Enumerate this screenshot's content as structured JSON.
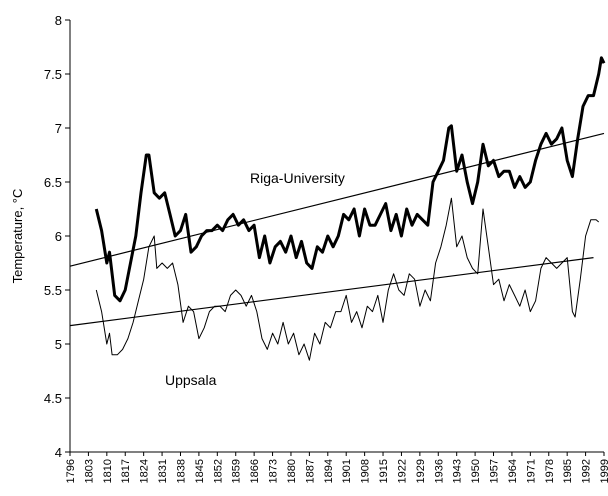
{
  "chart_data": {
    "type": "line",
    "y_label": "Temperature, °C",
    "xlim": [
      1796,
      1999
    ],
    "ylim": [
      4,
      8
    ],
    "xticks": [
      1796,
      1803,
      1810,
      1817,
      1824,
      1831,
      1838,
      1845,
      1852,
      1859,
      1866,
      1873,
      1880,
      1887,
      1894,
      1901,
      1908,
      1915,
      1922,
      1929,
      1936,
      1943,
      1950,
      1957,
      1964,
      1971,
      1978,
      1985,
      1992,
      1999
    ],
    "yticks": [
      4,
      4.5,
      5,
      5.5,
      6,
      6.5,
      7,
      7.5,
      8
    ],
    "series": [
      {
        "name": "Riga-University",
        "color": "#000000",
        "line_width": 3,
        "x": [
          1806,
          1808,
          1810,
          1811,
          1813,
          1815,
          1817,
          1819,
          1821,
          1823,
          1825,
          1826,
          1828,
          1830,
          1832,
          1834,
          1836,
          1838,
          1840,
          1842,
          1844,
          1846,
          1848,
          1850,
          1852,
          1854,
          1856,
          1858,
          1860,
          1862,
          1864,
          1866,
          1868,
          1870,
          1872,
          1874,
          1876,
          1878,
          1880,
          1882,
          1884,
          1886,
          1888,
          1890,
          1892,
          1894,
          1896,
          1898,
          1900,
          1902,
          1904,
          1906,
          1908,
          1910,
          1912,
          1914,
          1916,
          1918,
          1920,
          1922,
          1924,
          1926,
          1928,
          1930,
          1932,
          1934,
          1936,
          1938,
          1940,
          1941,
          1943,
          1945,
          1947,
          1949,
          1951,
          1953,
          1955,
          1957,
          1959,
          1961,
          1963,
          1965,
          1967,
          1969,
          1971,
          1973,
          1975,
          1977,
          1979,
          1981,
          1983,
          1985,
          1987,
          1989,
          1991,
          1993,
          1995,
          1997,
          1998,
          1999
        ],
        "values": [
          6.25,
          6.05,
          5.75,
          5.85,
          5.45,
          5.4,
          5.5,
          5.75,
          6.0,
          6.4,
          6.75,
          6.75,
          6.4,
          6.35,
          6.4,
          6.2,
          6.0,
          6.05,
          6.2,
          5.85,
          5.9,
          6.0,
          6.05,
          6.05,
          6.1,
          6.05,
          6.15,
          6.2,
          6.1,
          6.15,
          6.05,
          6.1,
          5.8,
          6.0,
          5.75,
          5.9,
          5.95,
          5.85,
          6.0,
          5.8,
          5.95,
          5.75,
          5.7,
          5.9,
          5.85,
          6.0,
          5.9,
          6.0,
          6.2,
          6.15,
          6.25,
          6.0,
          6.25,
          6.1,
          6.1,
          6.2,
          6.3,
          6.05,
          6.2,
          6.0,
          6.25,
          6.1,
          6.2,
          6.15,
          6.1,
          6.5,
          6.6,
          6.7,
          7.0,
          7.02,
          6.6,
          6.75,
          6.5,
          6.3,
          6.5,
          6.85,
          6.65,
          6.7,
          6.55,
          6.6,
          6.6,
          6.45,
          6.55,
          6.45,
          6.5,
          6.7,
          6.85,
          6.95,
          6.85,
          6.9,
          7.0,
          6.7,
          6.55,
          6.9,
          7.2,
          7.3,
          7.3,
          7.5,
          7.65,
          7.6
        ]
      },
      {
        "name": "Uppsala",
        "color": "#000000",
        "line_width": 1,
        "x": [
          1806,
          1808,
          1810,
          1811,
          1812,
          1814,
          1816,
          1818,
          1820,
          1822,
          1824,
          1826,
          1828,
          1829,
          1831,
          1833,
          1835,
          1837,
          1839,
          1841,
          1843,
          1845,
          1847,
          1849,
          1851,
          1853,
          1855,
          1857,
          1859,
          1861,
          1863,
          1865,
          1867,
          1869,
          1871,
          1873,
          1875,
          1877,
          1879,
          1881,
          1883,
          1885,
          1887,
          1889,
          1891,
          1893,
          1895,
          1897,
          1899,
          1901,
          1903,
          1905,
          1907,
          1909,
          1911,
          1913,
          1915,
          1917,
          1919,
          1921,
          1923,
          1925,
          1927,
          1929,
          1931,
          1933,
          1935,
          1937,
          1939,
          1941,
          1943,
          1945,
          1947,
          1949,
          1951,
          1953,
          1955,
          1957,
          1959,
          1961,
          1963,
          1965,
          1967,
          1969,
          1971,
          1973,
          1975,
          1977,
          1979,
          1981,
          1983,
          1985,
          1987,
          1988,
          1990,
          1992,
          1994,
          1996,
          1997
        ],
        "values": [
          5.5,
          5.3,
          5.0,
          5.1,
          4.9,
          4.9,
          4.95,
          5.05,
          5.2,
          5.4,
          5.6,
          5.9,
          6.0,
          5.7,
          5.75,
          5.7,
          5.75,
          5.55,
          5.2,
          5.35,
          5.3,
          5.05,
          5.15,
          5.3,
          5.35,
          5.35,
          5.3,
          5.45,
          5.5,
          5.45,
          5.35,
          5.45,
          5.3,
          5.05,
          4.95,
          5.1,
          5.0,
          5.2,
          5.0,
          5.1,
          4.9,
          5.0,
          4.85,
          5.1,
          5.0,
          5.2,
          5.15,
          5.3,
          5.3,
          5.45,
          5.2,
          5.3,
          5.15,
          5.35,
          5.3,
          5.45,
          5.2,
          5.5,
          5.65,
          5.5,
          5.45,
          5.65,
          5.6,
          5.35,
          5.5,
          5.4,
          5.75,
          5.9,
          6.1,
          6.35,
          5.9,
          6.0,
          5.8,
          5.7,
          5.65,
          6.25,
          5.9,
          5.55,
          5.6,
          5.4,
          5.55,
          5.45,
          5.35,
          5.5,
          5.3,
          5.4,
          5.7,
          5.8,
          5.75,
          5.7,
          5.75,
          5.8,
          5.3,
          5.25,
          5.6,
          6.0,
          6.15,
          6.15,
          6.13
        ]
      }
    ],
    "trend_lines": [
      {
        "x": [
          1796,
          1999
        ],
        "values": [
          5.72,
          6.95
        ]
      },
      {
        "x": [
          1796,
          1995
        ],
        "values": [
          5.17,
          5.8
        ]
      }
    ]
  }
}
